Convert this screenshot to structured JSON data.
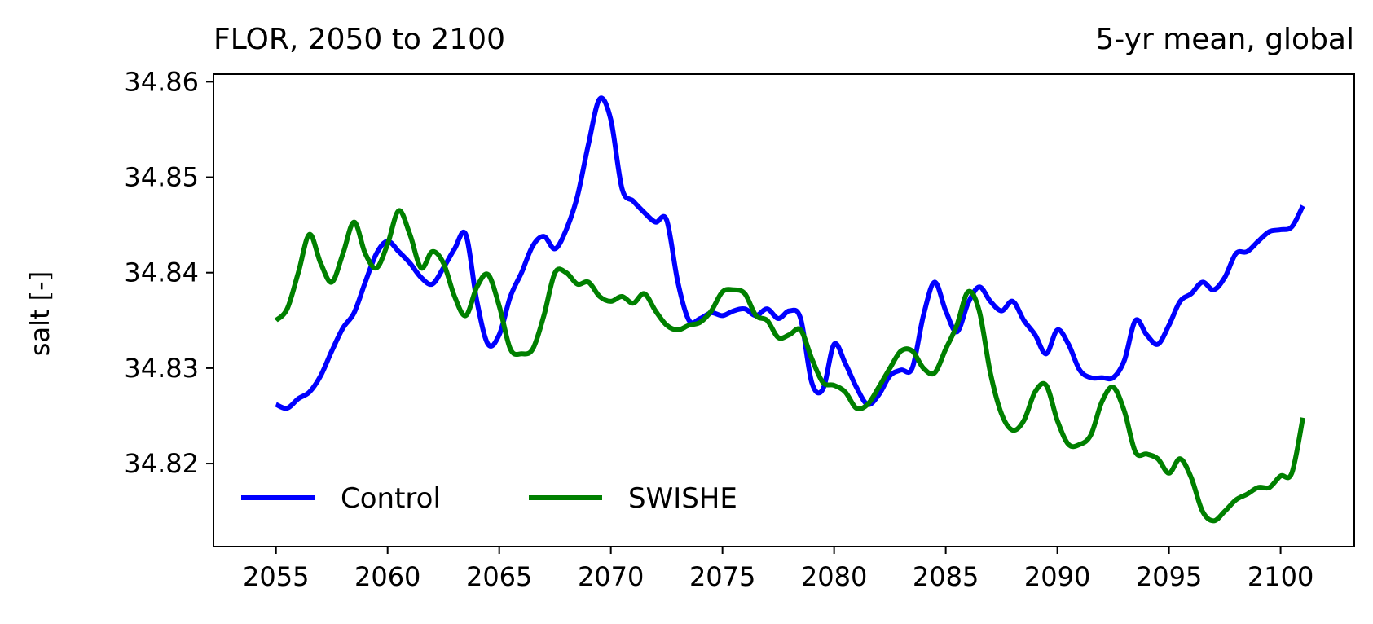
{
  "chart_data": {
    "type": "line",
    "title_left": "FLOR, 2050 to 2100",
    "title_right": "5-yr mean, global",
    "xlabel": "",
    "ylabel": "salt [-]",
    "xlim": [
      2052.2,
      2103.3
    ],
    "ylim": [
      34.8113,
      34.8608
    ],
    "x_ticks": [
      2055,
      2060,
      2065,
      2070,
      2075,
      2080,
      2085,
      2090,
      2095,
      2100
    ],
    "x_tick_labels": [
      "2055",
      "2060",
      "2065",
      "2070",
      "2075",
      "2080",
      "2085",
      "2090",
      "2095",
      "2100"
    ],
    "y_ticks": [
      34.82,
      34.83,
      34.84,
      34.85,
      34.86
    ],
    "y_tick_labels": [
      "34.82",
      "34.83",
      "34.84",
      "34.85",
      "34.86"
    ],
    "grid": false,
    "legend_placement": "lower-left",
    "series": [
      {
        "name": "Control",
        "color": "#0000ff",
        "x": [
          2055.0,
          2055.5,
          2056.0,
          2056.5,
          2057.0,
          2057.5,
          2058.0,
          2058.5,
          2059.0,
          2059.5,
          2060.0,
          2060.5,
          2061.0,
          2061.5,
          2062.0,
          2062.5,
          2063.0,
          2063.5,
          2064.0,
          2064.5,
          2065.0,
          2065.5,
          2066.0,
          2066.5,
          2067.0,
          2067.5,
          2068.0,
          2068.5,
          2069.0,
          2069.5,
          2070.0,
          2070.5,
          2071.0,
          2071.5,
          2072.0,
          2072.5,
          2073.0,
          2073.5,
          2074.0,
          2074.5,
          2075.0,
          2075.5,
          2076.0,
          2076.5,
          2077.0,
          2077.5,
          2078.0,
          2078.5,
          2079.0,
          2079.5,
          2080.0,
          2080.5,
          2081.0,
          2081.5,
          2082.0,
          2082.5,
          2083.0,
          2083.5,
          2084.0,
          2084.5,
          2085.0,
          2085.5,
          2086.0,
          2086.5,
          2087.0,
          2087.5,
          2088.0,
          2088.5,
          2089.0,
          2089.5,
          2090.0,
          2090.5,
          2091.0,
          2091.5,
          2092.0,
          2092.5,
          2093.0,
          2093.5,
          2094.0,
          2094.5,
          2095.0,
          2095.5,
          2096.0,
          2096.5,
          2097.0,
          2097.5,
          2098.0,
          2098.5,
          2099.0,
          2099.5,
          2100.0,
          2100.5,
          2101.0
        ],
        "values": [
          34.8262,
          34.8258,
          34.8268,
          34.8275,
          34.8292,
          34.8318,
          34.8342,
          34.8358,
          34.839,
          34.842,
          34.8433,
          34.8422,
          34.841,
          34.8395,
          34.8388,
          34.8405,
          34.8425,
          34.844,
          34.837,
          34.8325,
          34.8335,
          34.8375,
          34.84,
          34.8428,
          34.8438,
          34.8425,
          34.8445,
          34.848,
          34.8535,
          34.8582,
          34.856,
          34.8488,
          34.8475,
          34.8463,
          34.8453,
          34.8455,
          34.839,
          34.835,
          34.8352,
          34.8358,
          34.8355,
          34.836,
          34.8362,
          34.8355,
          34.8362,
          34.8352,
          34.836,
          34.8352,
          34.8285,
          34.8278,
          34.8325,
          34.8305,
          34.828,
          34.8262,
          34.8272,
          34.8292,
          34.8298,
          34.83,
          34.8355,
          34.839,
          34.836,
          34.8338,
          34.8368,
          34.8385,
          34.837,
          34.836,
          34.837,
          34.835,
          34.8335,
          34.8315,
          34.834,
          34.8325,
          34.8298,
          34.829,
          34.829,
          34.829,
          34.8308,
          34.835,
          34.8335,
          34.8325,
          34.8345,
          34.837,
          34.8378,
          34.839,
          34.8382,
          34.8395,
          34.842,
          34.8422,
          34.8433,
          34.8443,
          34.8445,
          34.8448,
          34.847
        ]
      },
      {
        "name": "SWISHE",
        "color": "#008000",
        "x": [
          2055.0,
          2055.5,
          2056.0,
          2056.5,
          2057.0,
          2057.5,
          2058.0,
          2058.5,
          2059.0,
          2059.5,
          2060.0,
          2060.5,
          2061.0,
          2061.5,
          2062.0,
          2062.5,
          2063.0,
          2063.5,
          2064.0,
          2064.5,
          2065.0,
          2065.5,
          2066.0,
          2066.5,
          2067.0,
          2067.5,
          2068.0,
          2068.5,
          2069.0,
          2069.5,
          2070.0,
          2070.5,
          2071.0,
          2071.5,
          2072.0,
          2072.5,
          2073.0,
          2073.5,
          2074.0,
          2074.5,
          2075.0,
          2075.5,
          2076.0,
          2076.5,
          2077.0,
          2077.5,
          2078.0,
          2078.5,
          2079.0,
          2079.5,
          2080.0,
          2080.5,
          2081.0,
          2081.5,
          2082.0,
          2082.5,
          2083.0,
          2083.5,
          2084.0,
          2084.5,
          2085.0,
          2085.5,
          2086.0,
          2086.5,
          2087.0,
          2087.5,
          2088.0,
          2088.5,
          2089.0,
          2089.5,
          2090.0,
          2090.5,
          2091.0,
          2091.5,
          2092.0,
          2092.5,
          2093.0,
          2093.5,
          2094.0,
          2094.5,
          2095.0,
          2095.5,
          2096.0,
          2096.5,
          2097.0,
          2097.5,
          2098.0,
          2098.5,
          2099.0,
          2099.5,
          2100.0,
          2100.5,
          2101.0
        ],
        "values": [
          34.835,
          34.8362,
          34.84,
          34.844,
          34.841,
          34.839,
          34.842,
          34.8453,
          34.842,
          34.8405,
          34.843,
          34.8465,
          34.844,
          34.8405,
          34.8422,
          34.841,
          34.8375,
          34.8355,
          34.8385,
          34.8398,
          34.8365,
          34.832,
          34.8315,
          34.832,
          34.8355,
          34.84,
          34.84,
          34.8388,
          34.839,
          34.8375,
          34.837,
          34.8375,
          34.8368,
          34.8378,
          34.836,
          34.8345,
          34.834,
          34.8345,
          34.8348,
          34.836,
          34.838,
          34.8382,
          34.8378,
          34.8355,
          34.835,
          34.8332,
          34.8335,
          34.834,
          34.831,
          34.8285,
          34.8282,
          34.8275,
          34.8258,
          34.8262,
          34.828,
          34.83,
          34.8318,
          34.8318,
          34.83,
          34.8295,
          34.832,
          34.8345,
          34.838,
          34.836,
          34.8295,
          34.8252,
          34.8235,
          34.8245,
          34.8275,
          34.8282,
          34.8245,
          34.822,
          34.822,
          34.823,
          34.8265,
          34.828,
          34.8255,
          34.8212,
          34.821,
          34.8205,
          34.819,
          34.8205,
          34.8185,
          34.815,
          34.814,
          34.815,
          34.8162,
          34.8168,
          34.8175,
          34.8175,
          34.8187,
          34.819,
          34.8248
        ]
      }
    ]
  }
}
